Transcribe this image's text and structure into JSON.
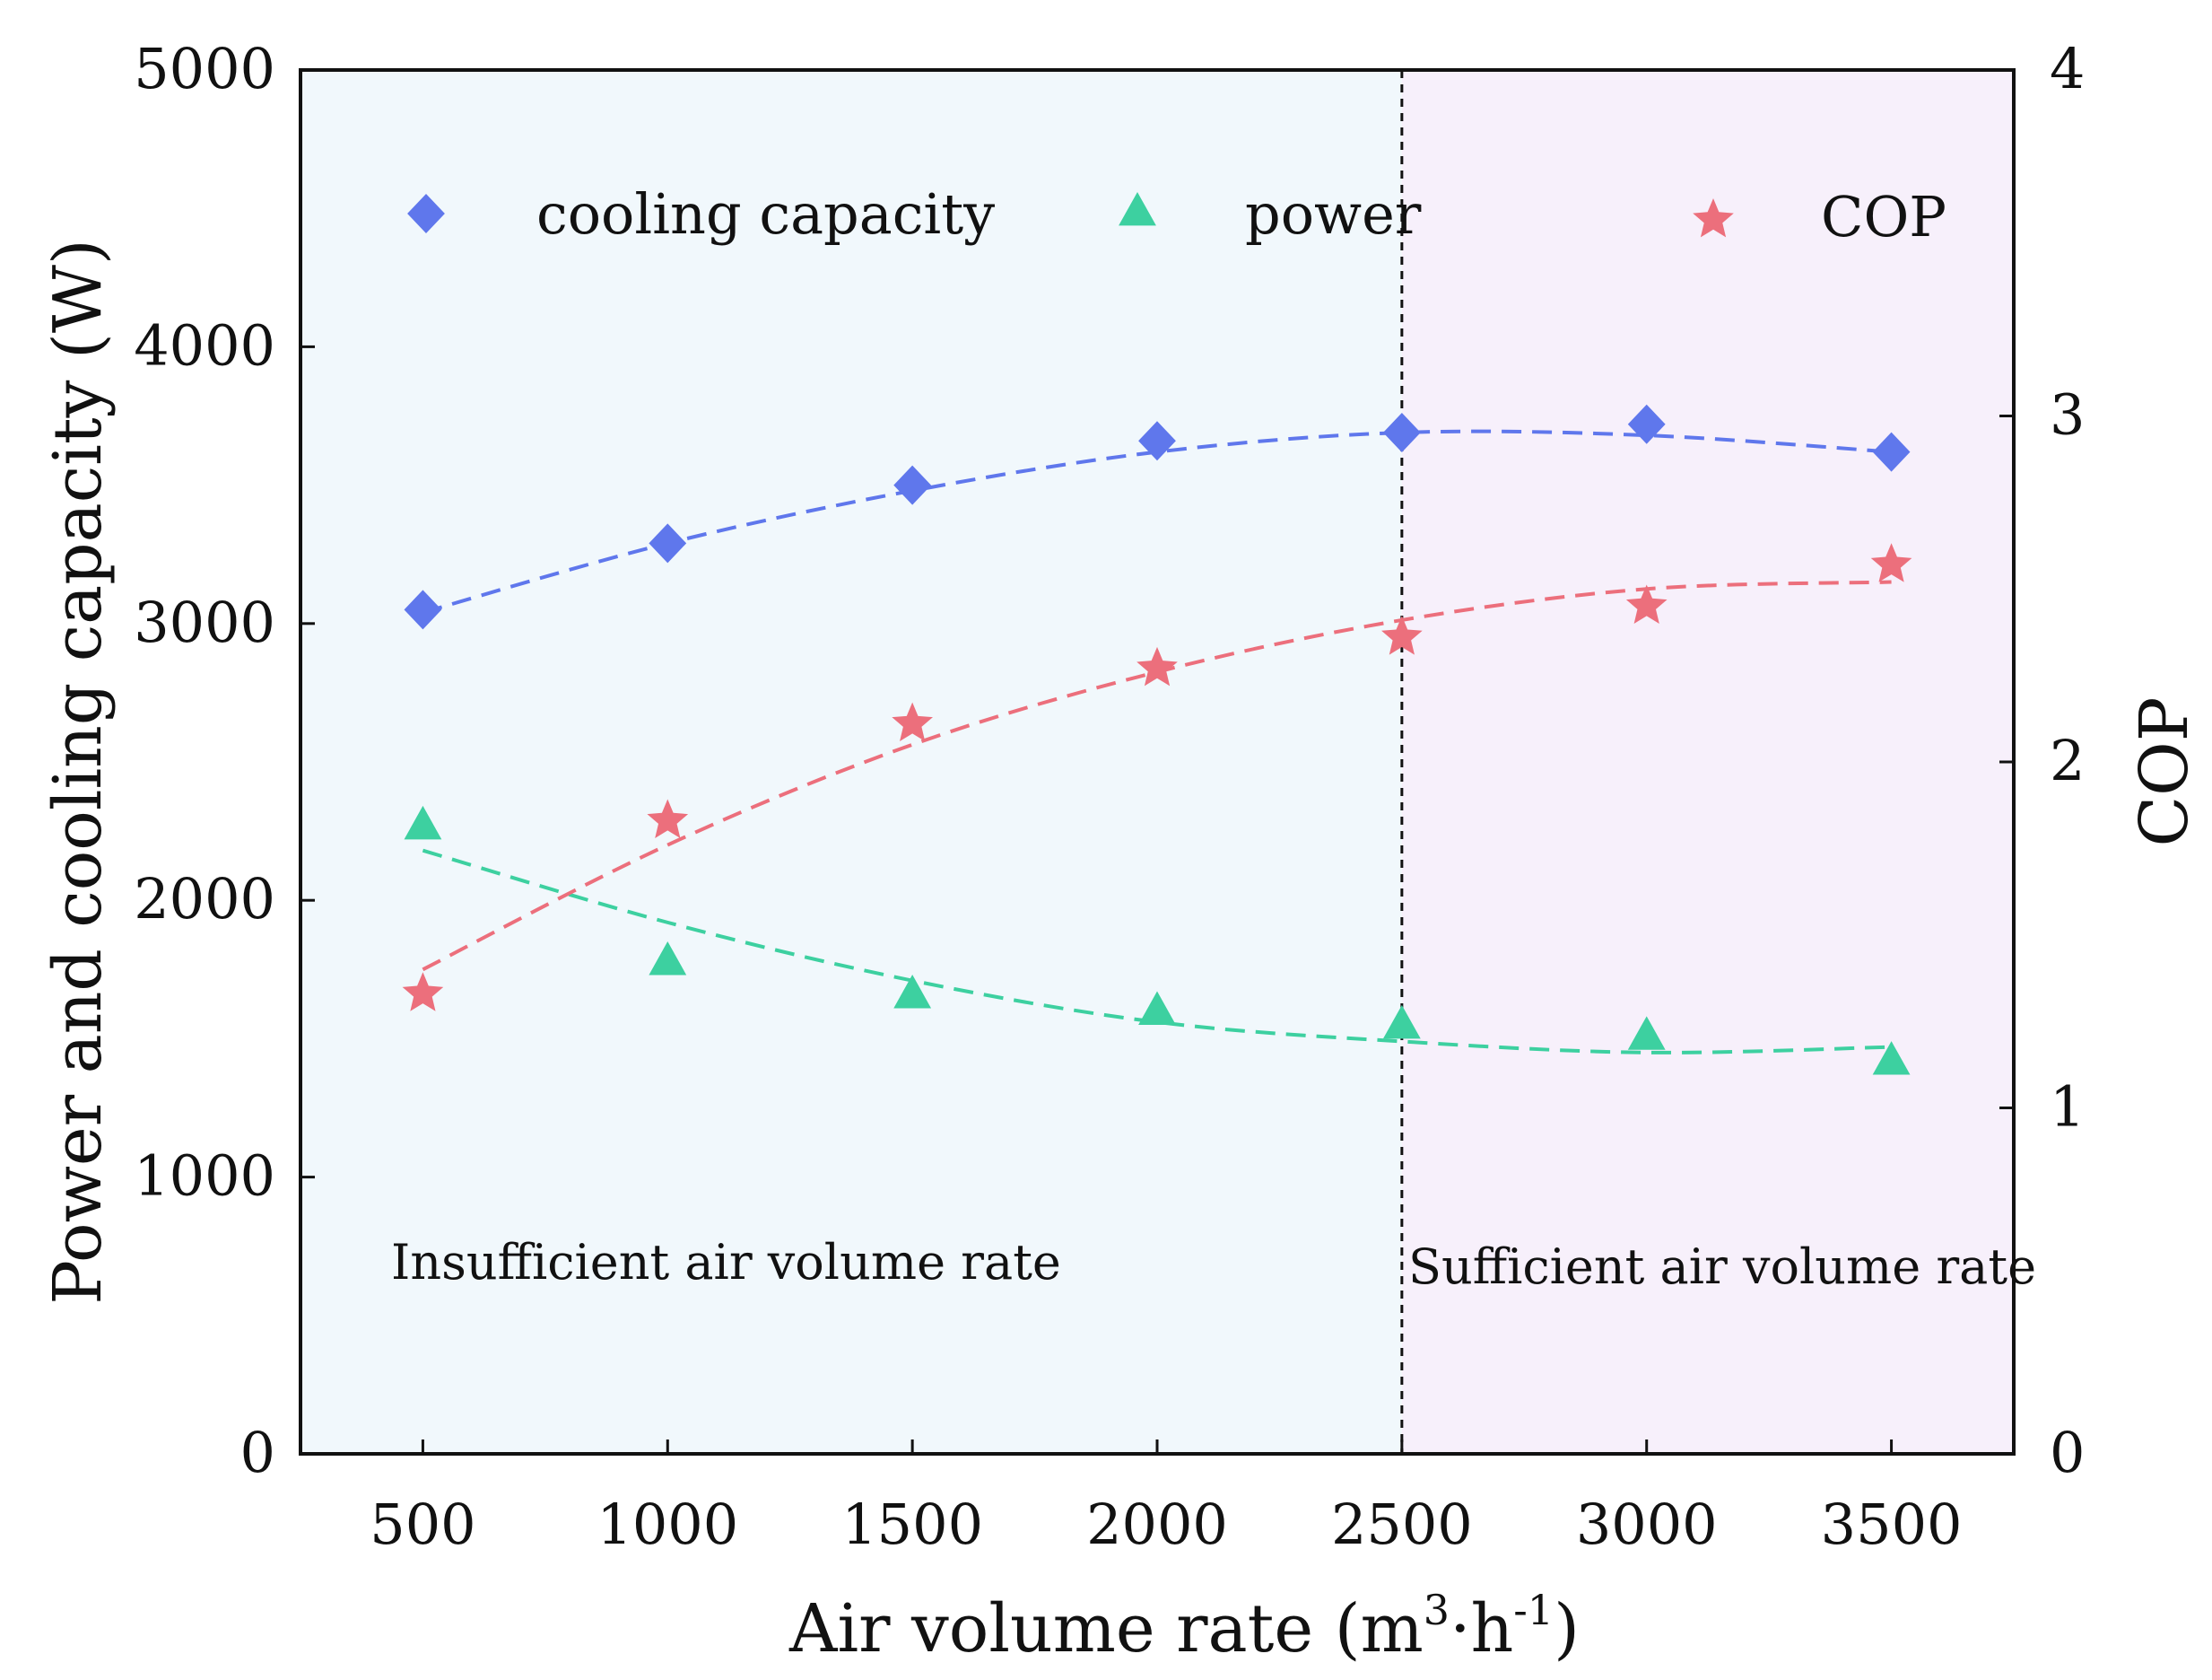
{
  "chart_data": {
    "type": "scatter",
    "title": "",
    "xlabel": "Air volume rate",
    "xlabel_unit_parts": {
      "open": "(m",
      "sup1": "3",
      "mid": "·h",
      "sup2": "-1",
      "close": ")"
    },
    "ylabel_left": "Power and cooling capacity (W)",
    "ylabel_right": "COP",
    "x": [
      500,
      1000,
      1500,
      2000,
      2500,
      3000,
      3500
    ],
    "x_ticks": [
      500,
      1000,
      1500,
      2000,
      2500,
      3000,
      3500
    ],
    "xlim": [
      250,
      3750
    ],
    "ylim_left": [
      0,
      5000
    ],
    "ylim_right": [
      0,
      4
    ],
    "y_ticks_left": [
      0,
      1000,
      2000,
      3000,
      4000,
      5000
    ],
    "y_ticks_right": [
      0,
      1,
      2,
      3,
      4
    ],
    "grid": false,
    "legend_position": "top",
    "series": [
      {
        "name": "cooling capacity",
        "axis": "left",
        "marker": "diamond",
        "color": "#5f77ec",
        "values": [
          3050,
          3290,
          3500,
          3660,
          3690,
          3720,
          3620
        ],
        "fit": [
          3040,
          3290,
          3480,
          3620,
          3690,
          3680,
          3620
        ]
      },
      {
        "name": "power",
        "axis": "left",
        "marker": "triangle",
        "color": "#3dd0a0",
        "values": [
          2270,
          1780,
          1660,
          1600,
          1550,
          1510,
          1420
        ],
        "fit": [
          2180,
          1920,
          1710,
          1560,
          1490,
          1450,
          1470
        ]
      },
      {
        "name": "COP",
        "axis": "right",
        "marker": "star",
        "color": "#ec6f7c",
        "values": [
          1.33,
          1.83,
          2.11,
          2.27,
          2.36,
          2.45,
          2.57
        ],
        "fit": [
          1.4,
          1.76,
          2.05,
          2.26,
          2.41,
          2.5,
          2.52
        ]
      }
    ],
    "divider_x": 2500,
    "regions": [
      {
        "label": "Insufficient air volume rate",
        "x_range": [
          250,
          2500
        ],
        "color": "#f1f8fc"
      },
      {
        "label": "Sufficient air volume rate",
        "x_range": [
          2500,
          3750
        ],
        "color": "#f7f0fb"
      }
    ]
  }
}
